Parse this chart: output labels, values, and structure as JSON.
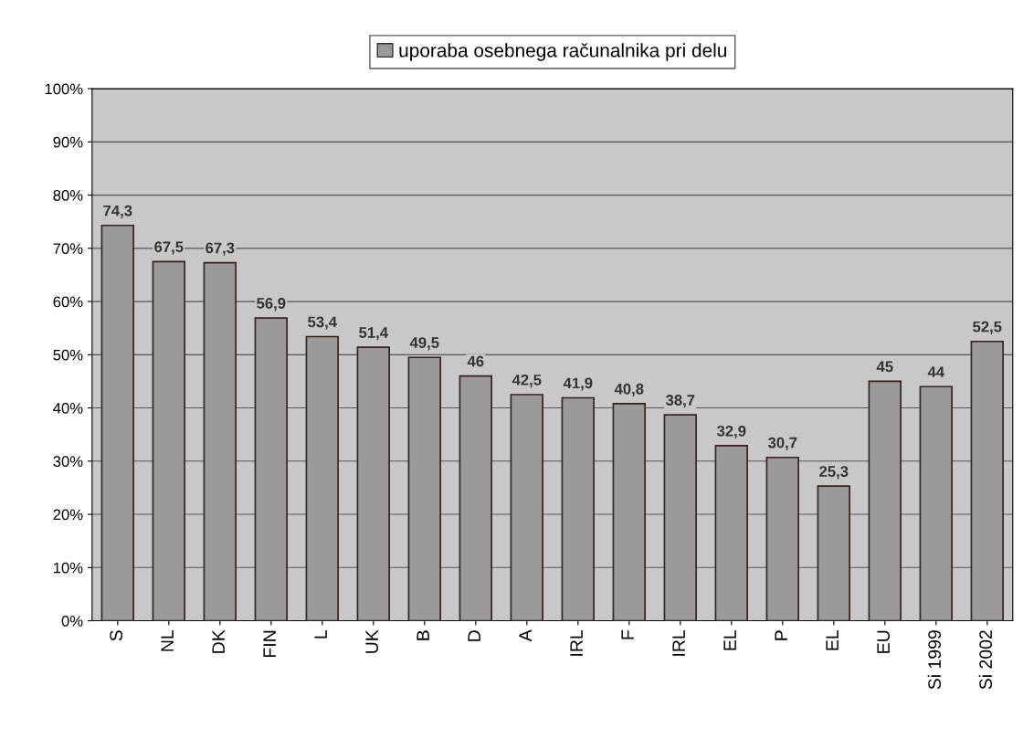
{
  "chart_data": {
    "type": "bar",
    "categories": [
      "S",
      "NL",
      "DK",
      "FIN",
      "L",
      "UK",
      "B",
      "D",
      "A",
      "IRL",
      "F",
      "IRL",
      "EL",
      "P",
      "EL",
      "EU",
      "Si 1999",
      "Si 2002"
    ],
    "series": [
      {
        "name": "uporaba osebnega računalnika pri delu",
        "color": "#9a9a9a",
        "values": [
          74.3,
          67.5,
          67.3,
          56.9,
          53.4,
          51.4,
          49.5,
          46,
          42.5,
          41.9,
          40.8,
          38.7,
          32.9,
          30.7,
          25.3,
          45,
          44,
          52.5
        ],
        "value_labels": [
          "74,3",
          "67,5",
          "67,3",
          "56,9",
          "53,4",
          "51,4",
          "49,5",
          "46",
          "42,5",
          "41,9",
          "40,8",
          "38,7",
          "32,9",
          "30,7",
          "25,3",
          "45",
          "44",
          "52,5"
        ]
      }
    ],
    "ylim": [
      0,
      100
    ],
    "yticks": [
      {
        "value": 0,
        "label": "0%"
      },
      {
        "value": 10,
        "label": "10%"
      },
      {
        "value": 20,
        "label": "20%"
      },
      {
        "value": 30,
        "label": "30%"
      },
      {
        "value": 40,
        "label": "40%"
      },
      {
        "value": 50,
        "label": "50%"
      },
      {
        "value": 60,
        "label": "60%"
      },
      {
        "value": 70,
        "label": "70%"
      },
      {
        "value": 80,
        "label": "80%"
      },
      {
        "value": 90,
        "label": "90%"
      },
      {
        "value": 100,
        "label": "100%"
      }
    ],
    "grid": "y",
    "legend": "top"
  }
}
